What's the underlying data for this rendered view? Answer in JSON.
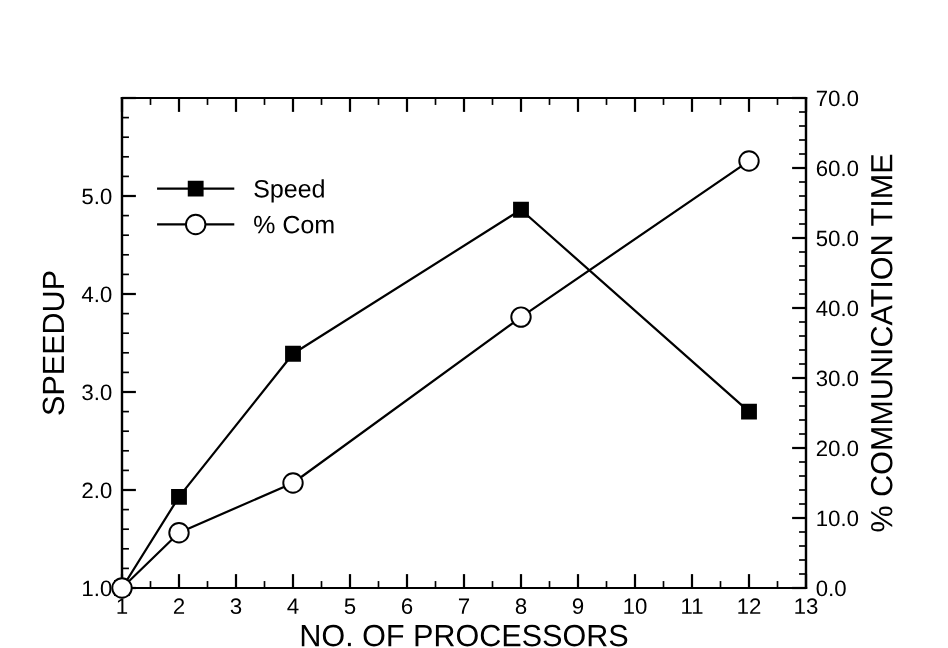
{
  "chart_data": {
    "type": "line",
    "xlabel": "NO. OF PROCESSORS",
    "ylabel": "SPEEDUP",
    "y2label": "% COMMUNICATION TIME",
    "x": [
      1,
      2,
      4,
      8,
      12
    ],
    "series": [
      {
        "name": "Speed",
        "color": "#000000",
        "values": [
          1.0,
          1.93,
          3.39,
          4.86,
          2.8
        ],
        "marker": "square"
      },
      {
        "name": "% Com",
        "color": "#000000",
        "values": [
          0.0,
          7.9,
          15.0,
          38.7,
          61.0
        ],
        "marker": "circle",
        "axis": "y2"
      }
    ],
    "xlim": [
      1,
      13
    ],
    "xticks": [
      1,
      2,
      3,
      4,
      5,
      6,
      7,
      8,
      9,
      10,
      11,
      12,
      13
    ],
    "ylim": [
      1.0,
      6.0
    ],
    "yticks": [
      {
        "value": 1.0,
        "label": "1.0"
      },
      {
        "value": 2.0,
        "label": "2.0"
      },
      {
        "value": 3.0,
        "label": "3.0"
      },
      {
        "value": 4.0,
        "label": "4.0"
      },
      {
        "value": 5.0,
        "label": "5.0"
      },
      {
        "value": 6.0,
        "label": null
      }
    ],
    "y2lim": [
      0,
      70
    ],
    "y2ticks": [
      {
        "value": 0,
        "label": "0.0"
      },
      {
        "value": 10,
        "label": "10.0"
      },
      {
        "value": 20,
        "label": "20.0"
      },
      {
        "value": 30,
        "label": "30.0"
      },
      {
        "value": 40,
        "label": "40.0"
      },
      {
        "value": 50,
        "label": "50.0"
      },
      {
        "value": 60,
        "label": "60.0"
      },
      {
        "value": 70,
        "label": "70.0"
      }
    ],
    "grid": false,
    "legend": "top left",
    "line_style": "solid"
  }
}
